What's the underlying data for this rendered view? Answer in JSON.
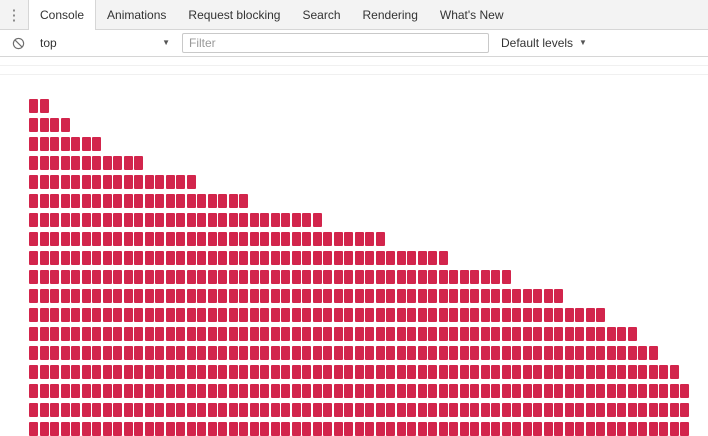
{
  "tabs": {
    "items": [
      "Console",
      "Animations",
      "Request blocking",
      "Search",
      "Rendering",
      "What's New"
    ]
  },
  "toolbar": {
    "frame_selector": "top",
    "filter_placeholder": "Filter",
    "levels_label": "Default levels"
  },
  "console": {
    "block_color": "#d2254c",
    "separator_rows": 2,
    "rows": [
      {
        "count": 2
      },
      {
        "count": 4
      },
      {
        "count": 7
      },
      {
        "count": 11
      },
      {
        "count": 16
      },
      {
        "count": 21
      },
      {
        "count": 28
      },
      {
        "count": 34
      },
      {
        "count": 40
      },
      {
        "count": 46
      },
      {
        "count": 51
      },
      {
        "count": 55
      },
      {
        "count": 58
      },
      {
        "count": 60
      },
      {
        "count": 62
      },
      {
        "count": 63
      },
      {
        "count": 63
      },
      {
        "count": 63
      }
    ]
  }
}
